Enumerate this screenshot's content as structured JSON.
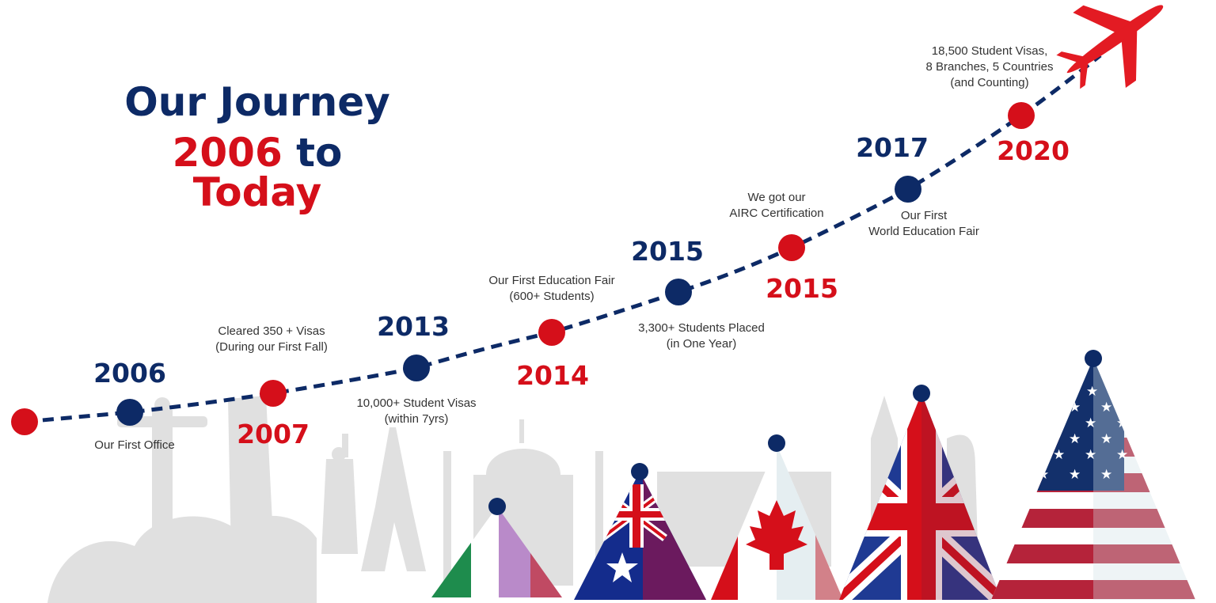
{
  "title": {
    "line1": "Our Journey",
    "line2_start": "2006",
    "line2_mid": " to ",
    "line2_end": "Today"
  },
  "colors": {
    "navy": "#0d2a66",
    "red": "#d50f1a",
    "skyline": "#e0e0e0"
  },
  "milestones": [
    {
      "year": "2006",
      "color": "navy",
      "lines": [
        "Our First Office"
      ]
    },
    {
      "year": "2007",
      "color": "red",
      "lines": [
        "Cleared 350 + Visas",
        "(During our First Fall)"
      ]
    },
    {
      "year": "2013",
      "color": "navy",
      "lines": [
        "10,000+ Student Visas",
        "(within 7yrs)"
      ]
    },
    {
      "year": "2014",
      "color": "red",
      "lines": [
        "Our First Education Fair",
        "(600+ Students)"
      ]
    },
    {
      "year": "2015",
      "color": "navy",
      "lines": [
        "3,300+ Students Placed",
        "(in One Year)"
      ]
    },
    {
      "year": "2015",
      "color": "red",
      "lines": [
        "We got our",
        "AIRC Certification"
      ]
    },
    {
      "year": "2017",
      "color": "navy",
      "lines": [
        "Our First",
        "World Education Fair"
      ]
    },
    {
      "year": "2020",
      "color": "red",
      "lines": [
        "18,500 Student Visas,",
        "8 Branches, 5 Countries",
        "(and Counting)"
      ]
    }
  ],
  "decorations": {
    "airplane_icon": "airplane-icon",
    "skyline": [
      "christ-redeemer-statue",
      "leaning-tower-of-pisa",
      "statue-of-liberty",
      "eiffel-tower",
      "taj-mahal",
      "colosseum",
      "big-ben",
      "sydney-opera-house"
    ],
    "flag_cones": [
      "italy-flag-cone",
      "australia-flag-cone",
      "canada-flag-cone",
      "uk-flag-cone",
      "usa-flag-cone"
    ]
  }
}
